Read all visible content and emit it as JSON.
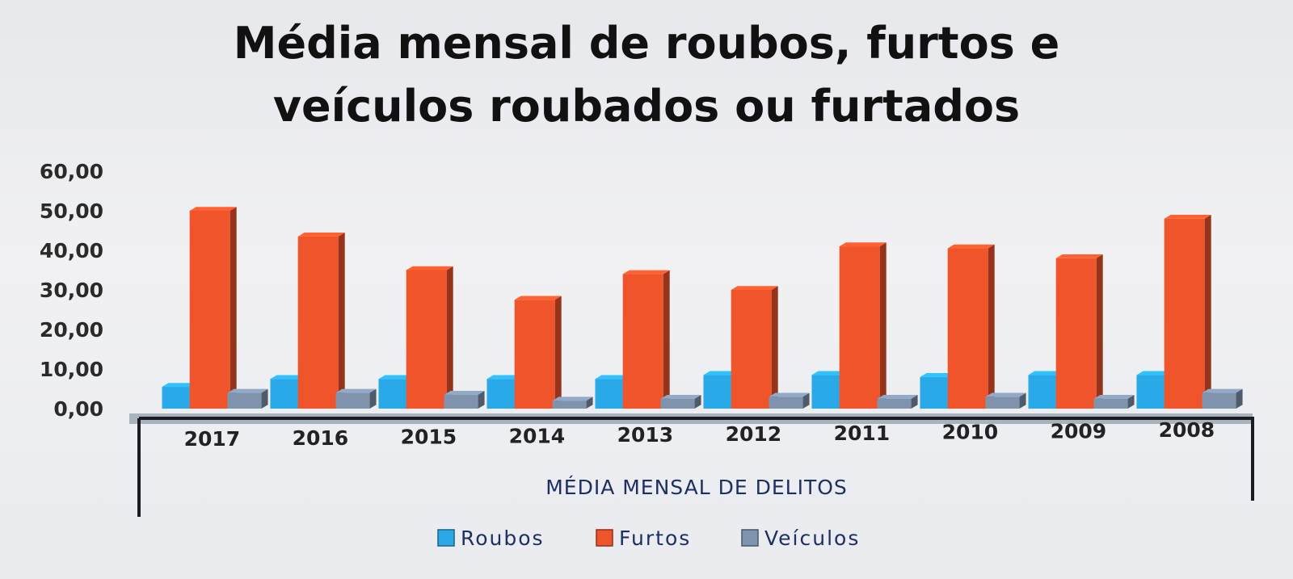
{
  "chart_data": {
    "type": "bar",
    "title_lines": [
      "Média mensal de roubos, furtos e",
      "veículos roubados ou furtados"
    ],
    "xlabel": "MÉDIA MENSAL DE DELITOS",
    "ylabel": "",
    "ylim": [
      0,
      60
    ],
    "yticks": [
      "0,00",
      "10,00",
      "20,00",
      "30,00",
      "40,00",
      "50,00",
      "60,00"
    ],
    "grid": false,
    "legend_position": "bottom",
    "categories": [
      "2017",
      "2016",
      "2015",
      "2014",
      "2013",
      "2012",
      "2011",
      "2010",
      "2009",
      "2008"
    ],
    "series": [
      {
        "name": "Roubos",
        "color": "#2aa9e8",
        "values": [
          5.5,
          7.5,
          7.5,
          7.5,
          7.5,
          8.5,
          8.5,
          8.0,
          8.5,
          8.5
        ]
      },
      {
        "name": "Furtos",
        "color": "#f0542a",
        "values": [
          50.0,
          43.5,
          35.0,
          27.5,
          34.0,
          30.0,
          41.0,
          40.5,
          38.0,
          48.0
        ]
      },
      {
        "name": "Veículos",
        "color": "#7f93ad",
        "values": [
          4.0,
          4.0,
          3.5,
          2.0,
          2.5,
          3.0,
          2.5,
          3.0,
          2.5,
          4.0
        ]
      }
    ]
  }
}
